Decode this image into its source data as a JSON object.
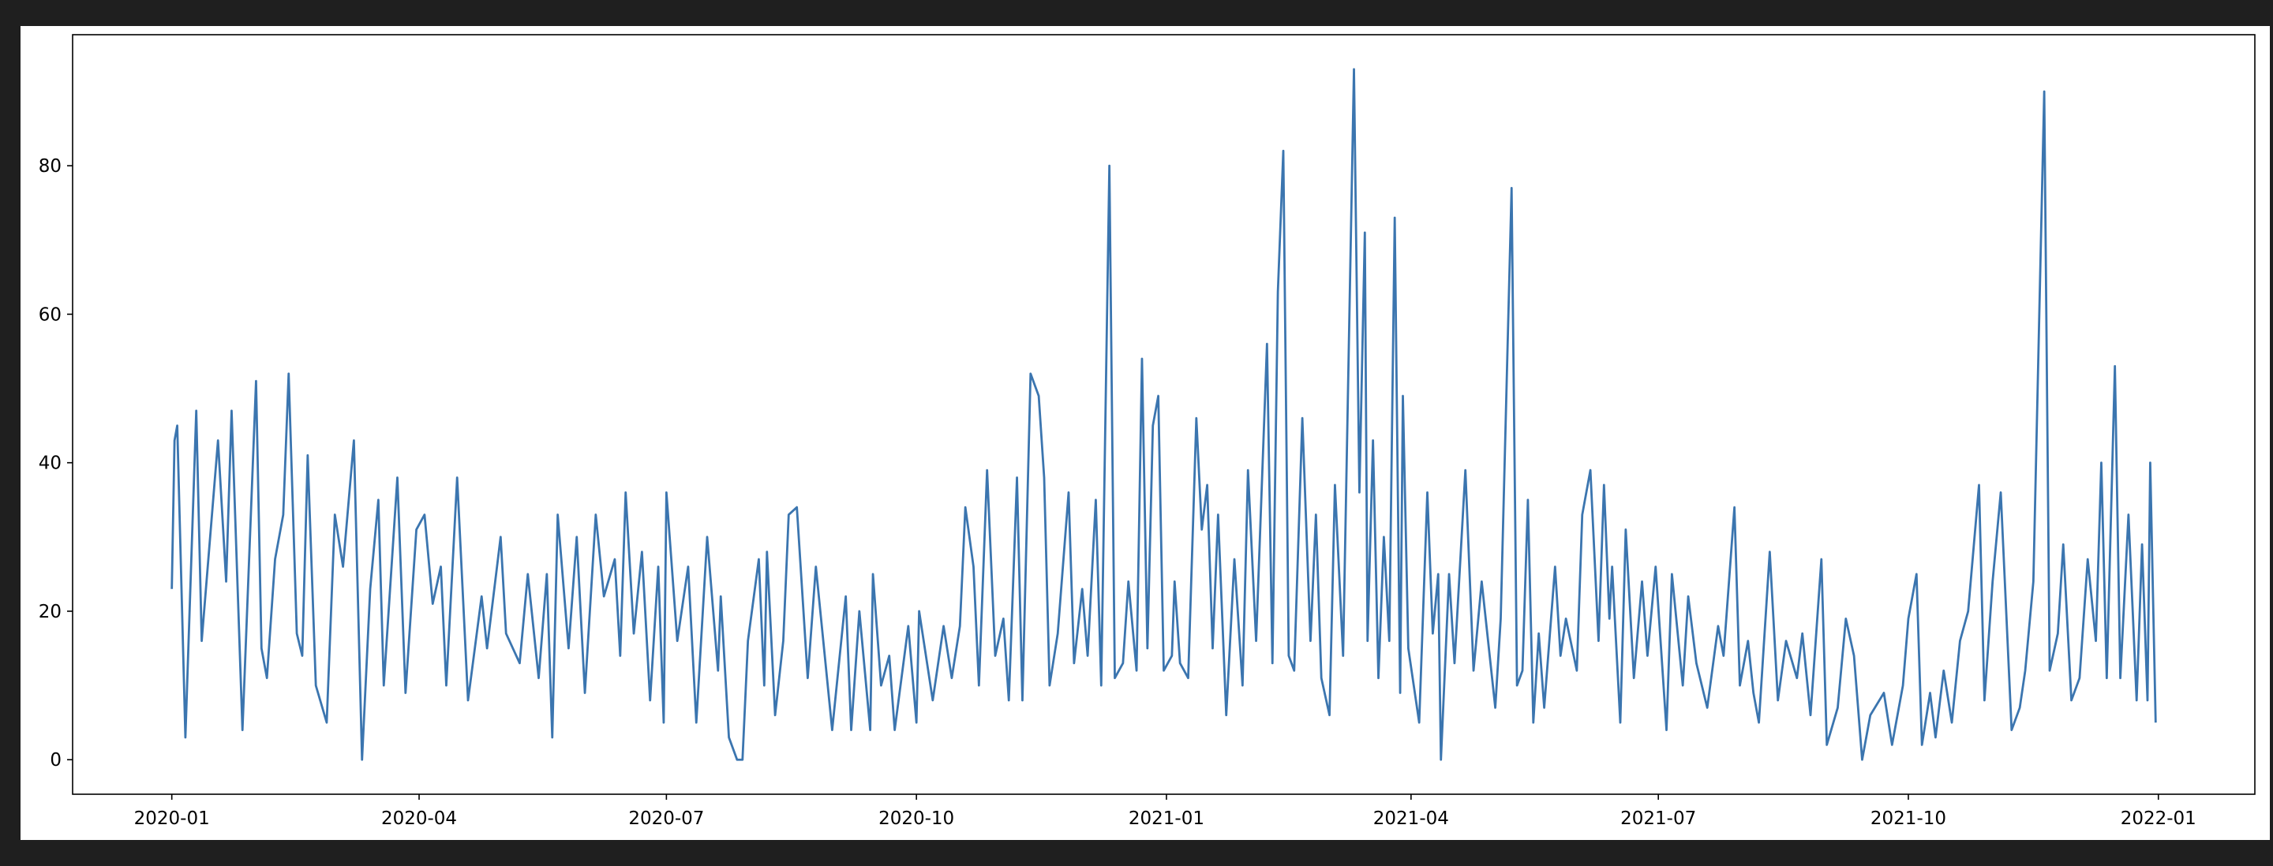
{
  "chart_data": {
    "type": "line",
    "x": [
      0,
      1,
      2,
      5,
      9,
      11,
      17,
      20,
      22,
      26,
      31,
      33,
      35,
      38,
      41,
      43,
      46,
      48,
      50,
      53,
      57,
      60,
      63,
      67,
      70,
      73,
      76,
      78,
      83,
      86,
      90,
      93,
      96,
      99,
      101,
      105,
      109,
      114,
      116,
      121,
      123,
      128,
      131,
      135,
      138,
      140,
      142,
      146,
      149,
      152,
      156,
      159,
      163,
      165,
      167,
      170,
      173,
      176,
      179,
      181,
      182,
      186,
      190,
      193,
      197,
      201,
      202,
      205,
      208,
      210,
      212,
      216,
      218,
      219,
      222,
      225,
      227,
      230,
      234,
      237,
      240,
      243,
      248,
      250,
      253,
      257,
      258,
      261,
      264,
      266,
      271,
      274,
      275,
      280,
      284,
      287,
      290,
      292,
      295,
      297,
      300,
      303,
      306,
      308,
      311,
      313,
      316,
      319,
      321,
      323,
      326,
      330,
      332,
      335,
      337,
      340,
      342,
      345,
      347,
      350,
      352,
      355,
      357,
      359,
      361,
      363,
      365,
      368,
      369,
      371,
      374,
      377,
      379,
      381,
      383,
      385,
      388,
      391,
      394,
      396,
      399,
      403,
      405,
      407,
      409,
      411,
      413,
      416,
      419,
      421,
      423,
      426,
      428,
      431,
      435,
      437,
      439,
      440,
      442,
      444,
      446,
      448,
      450,
      452,
      453,
      455,
      459,
      462,
      464,
      466,
      467,
      470,
      472,
      476,
      479,
      482,
      487,
      489,
      493,
      495,
      497,
      499,
      501,
      503,
      505,
      509,
      511,
      513,
      517,
      519,
      522,
      525,
      527,
      529,
      530,
      533,
      535,
      538,
      541,
      543,
      546,
      550,
      552,
      556,
      558,
      561,
      565,
      569,
      571,
      575,
      577,
      580,
      582,
      584,
      588,
      591,
      594,
      598,
      600,
      603,
      607,
      609,
      613,
      616,
      619,
      622,
      625,
      630,
      633,
      637,
      639,
      642,
      644,
      647,
      649,
      652,
      655,
      658,
      661,
      665,
      667,
      670,
      673,
      677,
      680,
      682,
      685,
      689,
      691,
      694,
      696,
      699,
      702,
      705,
      708,
      710,
      712,
      715,
      717,
      720,
      723,
      725,
      727,
      728,
      730
    ],
    "series": [
      {
        "color": "#3b75af",
        "values": [
          23,
          43,
          45,
          3,
          47,
          16,
          43,
          24,
          47,
          4,
          51,
          15,
          11,
          27,
          33,
          52,
          17,
          14,
          41,
          10,
          5,
          33,
          26,
          43,
          0,
          23,
          35,
          10,
          38,
          9,
          31,
          33,
          21,
          26,
          10,
          38,
          8,
          22,
          15,
          30,
          17,
          13,
          25,
          11,
          25,
          3,
          33,
          15,
          30,
          9,
          33,
          22,
          27,
          14,
          36,
          17,
          28,
          8,
          26,
          5,
          36,
          16,
          26,
          5,
          30,
          12,
          22,
          3,
          0,
          0,
          16,
          27,
          10,
          28,
          6,
          16,
          33,
          34,
          11,
          26,
          15,
          4,
          22,
          4,
          20,
          4,
          25,
          10,
          14,
          4,
          18,
          5,
          20,
          8,
          18,
          11,
          18,
          34,
          26,
          10,
          39,
          14,
          19,
          8,
          38,
          8,
          52,
          49,
          38,
          10,
          17,
          36,
          13,
          23,
          14,
          35,
          10,
          80,
          11,
          13,
          24,
          12,
          54,
          15,
          45,
          49,
          12,
          14,
          24,
          13,
          11,
          46,
          31,
          37,
          15,
          33,
          6,
          27,
          10,
          39,
          16,
          56,
          13,
          63,
          82,
          14,
          12,
          46,
          16,
          33,
          11,
          6,
          37,
          14,
          93,
          36,
          71,
          16,
          43,
          11,
          30,
          16,
          73,
          9,
          49,
          15,
          5,
          36,
          17,
          25,
          0,
          25,
          13,
          39,
          12,
          24,
          7,
          19,
          77,
          10,
          12,
          35,
          5,
          17,
          7,
          26,
          14,
          19,
          12,
          33,
          39,
          16,
          37,
          19,
          26,
          5,
          31,
          11,
          24,
          14,
          26,
          4,
          25,
          10,
          22,
          13,
          7,
          18,
          14,
          34,
          10,
          16,
          9,
          5,
          28,
          8,
          16,
          11,
          17,
          6,
          27,
          2,
          7,
          19,
          14,
          0,
          6,
          9,
          2,
          10,
          19,
          25,
          2,
          9,
          3,
          12,
          5,
          16,
          20,
          37,
          8,
          24,
          36,
          4,
          7,
          12,
          24,
          90,
          12,
          17,
          29,
          8,
          11,
          27,
          16,
          40,
          11,
          53,
          11,
          33,
          8,
          29,
          8,
          40,
          5
        ]
      }
    ],
    "xlim": [
      -36.5,
      766.5
    ],
    "xticks": [
      {
        "value": 0,
        "label": "2020-01"
      },
      {
        "value": 91,
        "label": "2020-04"
      },
      {
        "value": 182,
        "label": "2020-07"
      },
      {
        "value": 274,
        "label": "2020-10"
      },
      {
        "value": 366,
        "label": "2021-01"
      },
      {
        "value": 456,
        "label": "2021-04"
      },
      {
        "value": 547,
        "label": "2021-07"
      },
      {
        "value": 639,
        "label": "2021-10"
      },
      {
        "value": 731,
        "label": "2022-01"
      }
    ],
    "ylim": [
      -4.65,
      97.65
    ],
    "yticks": [
      0,
      20,
      40,
      60,
      80
    ],
    "grid": false
  }
}
